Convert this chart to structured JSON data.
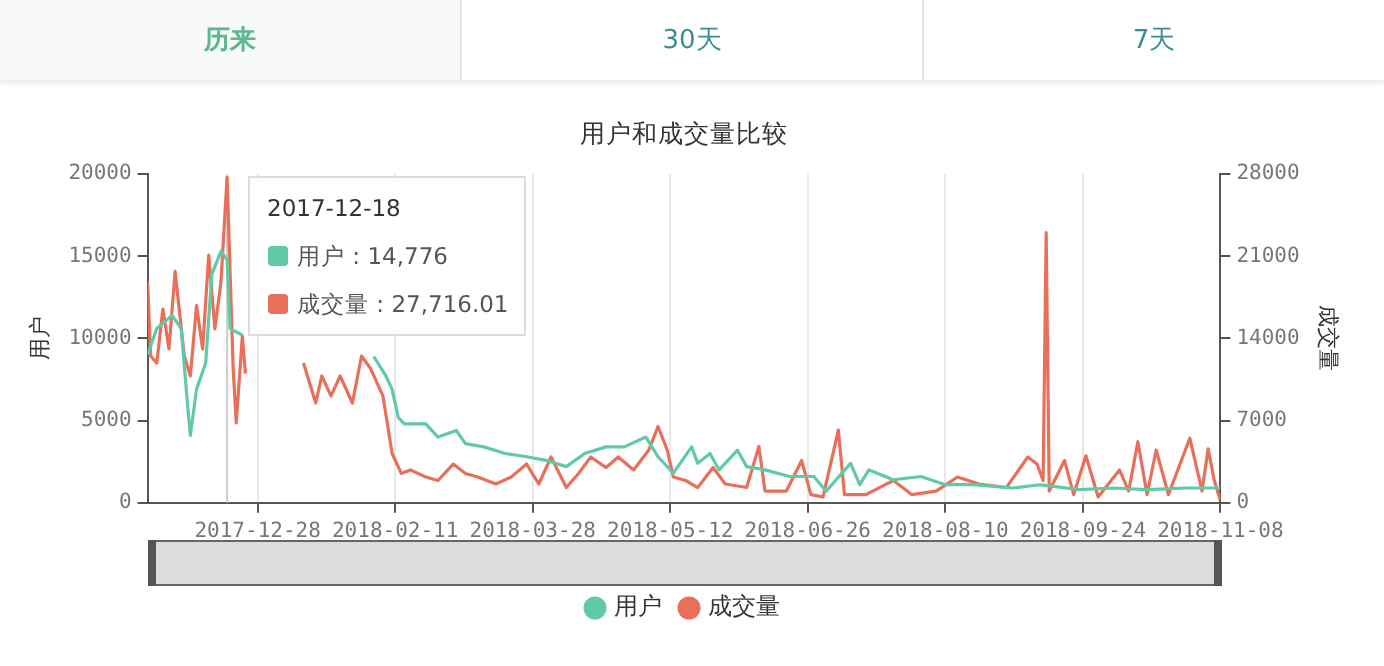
{
  "chart_data": {
    "type": "line",
    "title": "用户和成交量比较",
    "ylabel": "用户",
    "y2label": "成交量",
    "annotations": [
      "历来",
      "30天",
      "7天",
      "2017-12-18",
      "用户 : 14,776",
      "成交量 : 27,716.01"
    ],
    "xlim": [
      "2017-11-22",
      "2018-11-08"
    ],
    "xticks": [
      "2017-12-28",
      "2018-02-11",
      "2018-03-28",
      "2018-05-12",
      "2018-06-26",
      "2018-08-10",
      "2018-09-24",
      "2018-11-08"
    ],
    "ylim": [
      0,
      20000
    ],
    "yticks": [
      0,
      5000,
      10000,
      15000,
      20000
    ],
    "y2lim": [
      0,
      28000
    ],
    "y2ticks": [
      0,
      7000,
      14000,
      21000,
      28000
    ],
    "grid": "x",
    "legend": "bottom",
    "ref_lines": [
      {
        "axis": "x",
        "value": "2017-12-18",
        "color": "#cccccc"
      }
    ],
    "series": [
      {
        "name": "用户",
        "color": "#5fc9a8",
        "x": [
          "2017-11-22",
          "2017-11-25",
          "2017-11-30",
          "2017-12-03",
          "2017-12-05",
          "2017-12-06",
          "2017-12-08",
          "2017-12-11",
          "2017-12-13",
          "2017-12-16",
          "2017-12-18",
          "2017-12-19",
          "2017-12-23",
          "2017-12-24",
          "2018-02-04",
          "2018-02-08",
          "2018-02-10",
          "2018-02-12",
          "2018-02-14",
          "2018-02-21",
          "2018-02-25",
          "2018-03-03",
          "2018-03-06",
          "2018-03-12",
          "2018-03-19",
          "2018-03-26",
          "2018-04-01",
          "2018-04-08",
          "2018-04-14",
          "2018-04-21",
          "2018-04-27",
          "2018-05-04",
          "2018-05-08",
          "2018-05-13",
          "2018-05-19",
          "2018-05-21",
          "2018-05-25",
          "2018-05-28",
          "2018-06-03",
          "2018-06-06",
          "2018-06-12",
          "2018-06-20",
          "2018-06-28",
          "2018-07-02",
          "2018-07-10",
          "2018-07-13",
          "2018-07-16",
          "2018-07-24",
          "2018-08-02",
          "2018-08-10",
          "2018-08-19",
          "2018-09-01",
          "2018-09-10",
          "2018-09-23",
          "2018-10-04",
          "2018-10-15",
          "2018-10-28",
          "2018-11-08"
        ],
        "values": [
          9000,
          10600,
          11400,
          10600,
          6100,
          4100,
          6900,
          8500,
          13900,
          15300,
          14776,
          10600,
          10200,
          null,
          8900,
          7700,
          6900,
          5200,
          4800,
          4800,
          4000,
          4400,
          3600,
          3400,
          3000,
          2800,
          2600,
          2200,
          3000,
          3400,
          3400,
          4000,
          2800,
          1800,
          3400,
          2400,
          3000,
          2000,
          3200,
          2200,
          2000,
          1600,
          1600,
          700,
          2400,
          1100,
          2000,
          1400,
          1600,
          1100,
          1100,
          900,
          1100,
          800,
          900,
          800,
          900,
          900
        ]
      },
      {
        "name": "成交量",
        "color": "#e8705a",
        "axis": "y2",
        "x": [
          "2017-11-22",
          "2017-11-23",
          "2017-11-25",
          "2017-11-27",
          "2017-11-29",
          "2017-12-01",
          "2017-12-04",
          "2017-12-06",
          "2017-12-08",
          "2017-12-10",
          "2017-12-12",
          "2017-12-14",
          "2017-12-16",
          "2017-12-18",
          "2017-12-20",
          "2017-12-21",
          "2017-12-23",
          "2017-12-24",
          "2017-12-25",
          "2018-01-12",
          "2018-01-16",
          "2018-01-18",
          "2018-01-21",
          "2018-01-24",
          "2018-01-28",
          "2018-01-31",
          "2018-02-03",
          "2018-02-07",
          "2018-02-10",
          "2018-02-13",
          "2018-02-16",
          "2018-02-21",
          "2018-02-25",
          "2018-03-02",
          "2018-03-06",
          "2018-03-10",
          "2018-03-16",
          "2018-03-21",
          "2018-03-26",
          "2018-03-30",
          "2018-04-03",
          "2018-04-08",
          "2018-04-12",
          "2018-04-16",
          "2018-04-21",
          "2018-04-25",
          "2018-04-30",
          "2018-05-05",
          "2018-05-08",
          "2018-05-11",
          "2018-05-13",
          "2018-05-17",
          "2018-05-21",
          "2018-05-26",
          "2018-05-30",
          "2018-06-06",
          "2018-06-10",
          "2018-06-12",
          "2018-06-19",
          "2018-06-24",
          "2018-06-27",
          "2018-07-01",
          "2018-07-06",
          "2018-07-08",
          "2018-07-15",
          "2018-07-24",
          "2018-07-30",
          "2018-08-07",
          "2018-08-14",
          "2018-08-21",
          "2018-08-30",
          "2018-09-06",
          "2018-09-09",
          "2018-09-11",
          "2018-09-12",
          "2018-09-13",
          "2018-09-18",
          "2018-09-21",
          "2018-09-25",
          "2018-09-29",
          "2018-10-06",
          "2018-10-09",
          "2018-10-12",
          "2018-10-15",
          "2018-10-18",
          "2018-10-22",
          "2018-10-29",
          "2018-11-02",
          "2018-11-04",
          "2018-11-06",
          "2018-11-08"
        ],
        "values": [
          18800,
          12500,
          11900,
          16500,
          13100,
          19700,
          12500,
          10800,
          16800,
          13100,
          21100,
          14800,
          18800,
          27716.01,
          11400,
          6800,
          14200,
          11000,
          null,
          11900,
          8500,
          10800,
          9100,
          10800,
          8500,
          12500,
          11400,
          9100,
          4200,
          2500,
          2800,
          2200,
          1900,
          3300,
          2500,
          2200,
          1600,
          2200,
          3300,
          1600,
          3900,
          1300,
          2500,
          3900,
          3000,
          3900,
          2800,
          4500,
          6500,
          4500,
          2200,
          1900,
          1300,
          3000,
          1600,
          1300,
          4800,
          1000,
          1000,
          3600,
          700,
          500,
          6200,
          700,
          700,
          1900,
          700,
          1000,
          2200,
          1600,
          1300,
          3900,
          3300,
          1900,
          23000,
          1000,
          3600,
          700,
          4000,
          500,
          2800,
          1000,
          5200,
          700,
          4500,
          700,
          5500,
          1000,
          4600,
          1900,
          200
        ]
      }
    ]
  }
}
